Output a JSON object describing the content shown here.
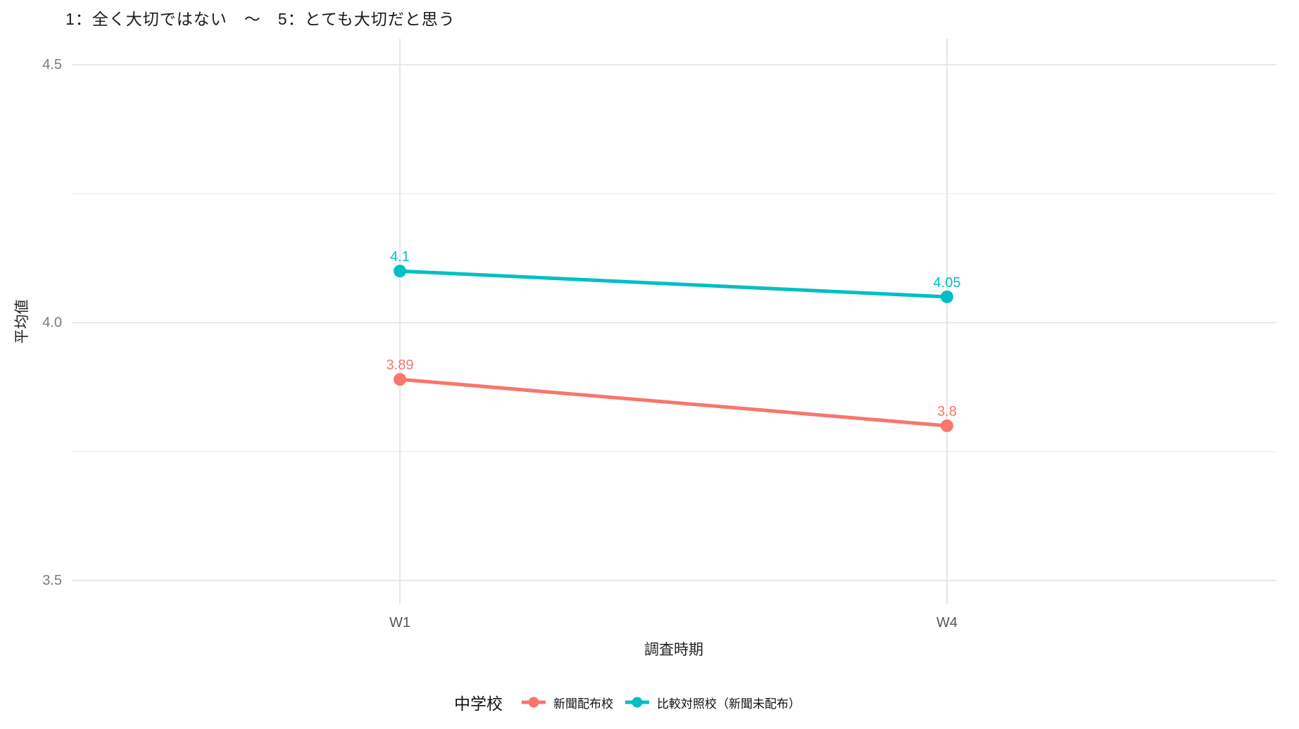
{
  "title": "1：全く大切ではない　〜　5：とても大切だと思う",
  "chart_data": {
    "type": "line",
    "x_categories": [
      "W1",
      "W4"
    ],
    "xlabel": "調査時期",
    "ylabel": "平均値",
    "ylim": [
      3.45,
      4.55
    ],
    "y_major_ticks": [
      "4.5",
      "4.0",
      "3.5"
    ],
    "y_minor_gridlines": [
      4.25,
      3.75
    ],
    "grid": {
      "major_color": "#E4E4E4",
      "minor_color": "#F1F1F1",
      "background": "#FFFFFF",
      "style": "major+minor horizontal, vertical at categories"
    },
    "legend": {
      "title": "中学校",
      "position": "bottom-center"
    },
    "series": [
      {
        "name": "新聞配布校",
        "color": "#F8766D",
        "values": [
          3.89,
          3.8
        ],
        "point_labels": [
          "3.89",
          "3.8"
        ]
      },
      {
        "name": "比較対照校（新聞未配布）",
        "color": "#00BFC4",
        "values": [
          4.1,
          4.05
        ],
        "point_labels": [
          "4.1",
          "4.05"
        ]
      }
    ]
  }
}
